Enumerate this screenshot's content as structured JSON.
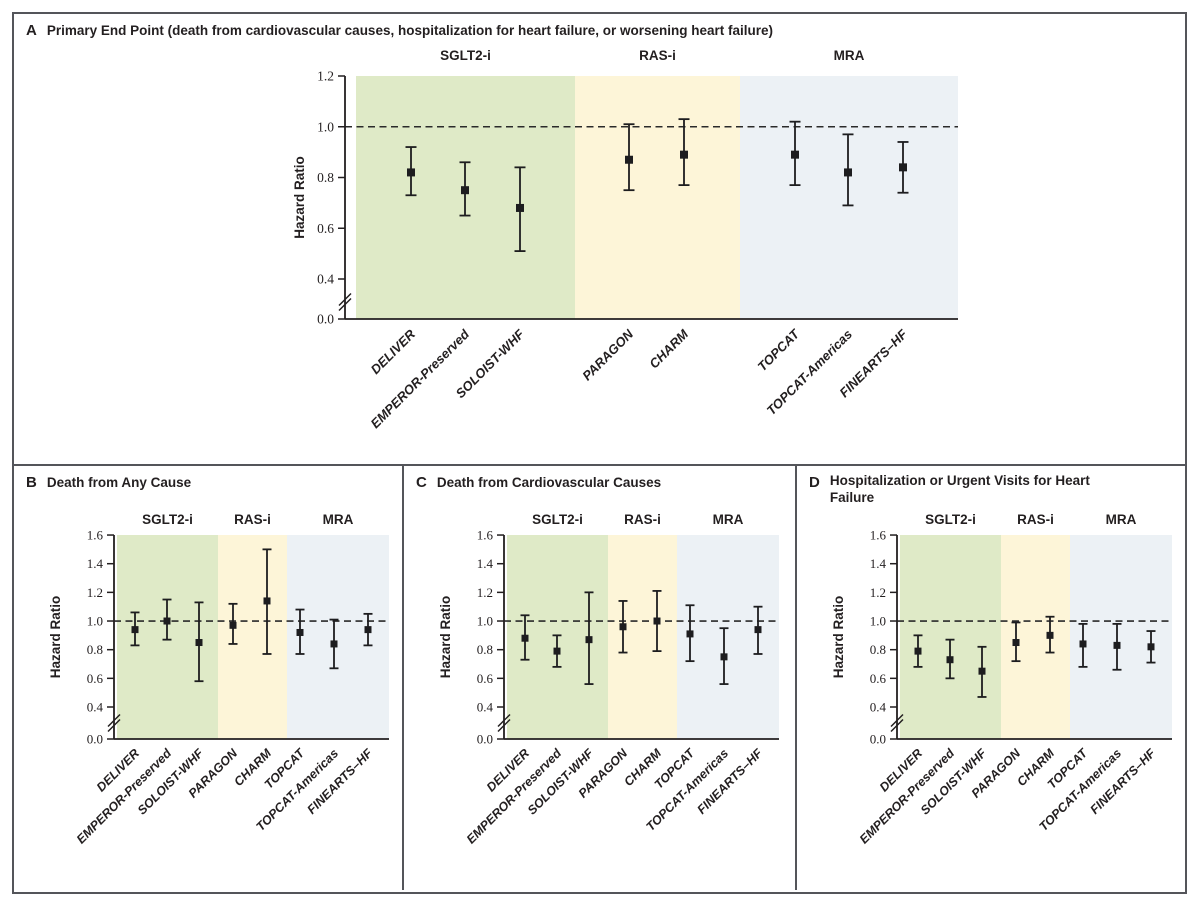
{
  "ylabel": "Hazard Ratio",
  "group_labels": [
    "SGLT2-i",
    "RAS-i",
    "MRA"
  ],
  "trials": [
    "DELIVER",
    "EMPEROR-Preserved",
    "SOLOIST-WHF",
    "PARAGON",
    "CHARM",
    "TOPCAT",
    "TOPCAT-Americas",
    "FINEARTS–HF"
  ],
  "colors": {
    "sglt2i_band": "#dfeac7",
    "rasi_band": "#fdf5d8",
    "mra_band": "#ecf1f5",
    "marker": "#1d1d1f",
    "axis": "#231f20",
    "reference_line": "#2a2a2a",
    "panel_border": "#54555a"
  },
  "chart_data": [
    {
      "type": "scatter",
      "panel": "A",
      "title": "Primary End Point (death from cardiovascular causes, hospitalization for heart failure, or worsening heart failure)",
      "ylabel": "Hazard Ratio",
      "ylim": [
        0.0,
        1.2
      ],
      "yticks": [
        0.0,
        0.4,
        0.6,
        0.8,
        1.0,
        1.2
      ],
      "axis_break_below": 0.4,
      "reference_line": 1.0,
      "grid": false,
      "groups": [
        {
          "name": "SGLT2-i",
          "trials": [
            "DELIVER",
            "EMPEROR-Preserved",
            "SOLOIST-WHF"
          ]
        },
        {
          "name": "RAS-i",
          "trials": [
            "PARAGON",
            "CHARM"
          ]
        },
        {
          "name": "MRA",
          "trials": [
            "TOPCAT",
            "TOPCAT-Americas",
            "FINEARTS–HF"
          ]
        }
      ],
      "series": [
        {
          "trial": "DELIVER",
          "group": "SGLT2-i",
          "hr": 0.82,
          "ci_lower": 0.73,
          "ci_upper": 0.92
        },
        {
          "trial": "EMPEROR-Preserved",
          "group": "SGLT2-i",
          "hr": 0.75,
          "ci_lower": 0.65,
          "ci_upper": 0.86
        },
        {
          "trial": "SOLOIST-WHF",
          "group": "SGLT2-i",
          "hr": 0.68,
          "ci_lower": 0.51,
          "ci_upper": 0.84
        },
        {
          "trial": "PARAGON",
          "group": "RAS-i",
          "hr": 0.87,
          "ci_lower": 0.75,
          "ci_upper": 1.01
        },
        {
          "trial": "CHARM",
          "group": "RAS-i",
          "hr": 0.89,
          "ci_lower": 0.77,
          "ci_upper": 1.03
        },
        {
          "trial": "TOPCAT",
          "group": "MRA",
          "hr": 0.89,
          "ci_lower": 0.77,
          "ci_upper": 1.02
        },
        {
          "trial": "TOPCAT-Americas",
          "group": "MRA",
          "hr": 0.82,
          "ci_lower": 0.69,
          "ci_upper": 0.97
        },
        {
          "trial": "FINEARTS–HF",
          "group": "MRA",
          "hr": 0.84,
          "ci_lower": 0.74,
          "ci_upper": 0.94
        }
      ]
    },
    {
      "type": "scatter",
      "panel": "B",
      "title": "Death from Any Cause",
      "ylabel": "Hazard Ratio",
      "ylim": [
        0.0,
        1.6
      ],
      "yticks": [
        0.0,
        0.4,
        0.6,
        0.8,
        1.0,
        1.2,
        1.4,
        1.6
      ],
      "axis_break_below": 0.4,
      "reference_line": 1.0,
      "grid": false,
      "groups": [
        {
          "name": "SGLT2-i",
          "trials": [
            "DELIVER",
            "EMPEROR-Preserved",
            "SOLOIST-WHF"
          ]
        },
        {
          "name": "RAS-i",
          "trials": [
            "PARAGON",
            "CHARM"
          ]
        },
        {
          "name": "MRA",
          "trials": [
            "TOPCAT",
            "TOPCAT-Americas",
            "FINEARTS–HF"
          ]
        }
      ],
      "series": [
        {
          "trial": "DELIVER",
          "group": "SGLT2-i",
          "hr": 0.94,
          "ci_lower": 0.83,
          "ci_upper": 1.06
        },
        {
          "trial": "EMPEROR-Preserved",
          "group": "SGLT2-i",
          "hr": 1.0,
          "ci_lower": 0.87,
          "ci_upper": 1.15
        },
        {
          "trial": "SOLOIST-WHF",
          "group": "SGLT2-i",
          "hr": 0.85,
          "ci_lower": 0.58,
          "ci_upper": 1.13
        },
        {
          "trial": "PARAGON",
          "group": "RAS-i",
          "hr": 0.97,
          "ci_lower": 0.84,
          "ci_upper": 1.12
        },
        {
          "trial": "CHARM",
          "group": "RAS-i",
          "hr": 1.14,
          "ci_lower": 0.77,
          "ci_upper": 1.5
        },
        {
          "trial": "TOPCAT",
          "group": "MRA",
          "hr": 0.92,
          "ci_lower": 0.77,
          "ci_upper": 1.08
        },
        {
          "trial": "TOPCAT-Americas",
          "group": "MRA",
          "hr": 0.84,
          "ci_lower": 0.67,
          "ci_upper": 1.01
        },
        {
          "trial": "FINEARTS–HF",
          "group": "MRA",
          "hr": 0.94,
          "ci_lower": 0.83,
          "ci_upper": 1.05
        }
      ]
    },
    {
      "type": "scatter",
      "panel": "C",
      "title": "Death from Cardiovascular Causes",
      "ylabel": "Hazard Ratio",
      "ylim": [
        0.0,
        1.6
      ],
      "yticks": [
        0.0,
        0.4,
        0.6,
        0.8,
        1.0,
        1.2,
        1.4,
        1.6
      ],
      "axis_break_below": 0.4,
      "reference_line": 1.0,
      "grid": false,
      "groups": [
        {
          "name": "SGLT2-i",
          "trials": [
            "DELIVER",
            "EMPEROR-Preserved",
            "SOLOIST-WHF"
          ]
        },
        {
          "name": "RAS-i",
          "trials": [
            "PARAGON",
            "CHARM"
          ]
        },
        {
          "name": "MRA",
          "trials": [
            "TOPCAT",
            "TOPCAT-Americas",
            "FINEARTS–HF"
          ]
        }
      ],
      "series": [
        {
          "trial": "DELIVER",
          "group": "SGLT2-i",
          "hr": 0.88,
          "ci_lower": 0.73,
          "ci_upper": 1.04
        },
        {
          "trial": "EMPEROR-Preserved",
          "group": "SGLT2-i",
          "hr": 0.79,
          "ci_lower": 0.68,
          "ci_upper": 0.9
        },
        {
          "trial": "SOLOIST-WHF",
          "group": "SGLT2-i",
          "hr": 0.87,
          "ci_lower": 0.56,
          "ci_upper": 1.2
        },
        {
          "trial": "PARAGON",
          "group": "RAS-i",
          "hr": 0.96,
          "ci_lower": 0.78,
          "ci_upper": 1.14
        },
        {
          "trial": "CHARM",
          "group": "RAS-i",
          "hr": 1.0,
          "ci_lower": 0.79,
          "ci_upper": 1.21
        },
        {
          "trial": "TOPCAT",
          "group": "MRA",
          "hr": 0.91,
          "ci_lower": 0.72,
          "ci_upper": 1.11
        },
        {
          "trial": "TOPCAT-Americas",
          "group": "MRA",
          "hr": 0.75,
          "ci_lower": 0.56,
          "ci_upper": 0.95
        },
        {
          "trial": "FINEARTS–HF",
          "group": "MRA",
          "hr": 0.94,
          "ci_lower": 0.77,
          "ci_upper": 1.1
        }
      ]
    },
    {
      "type": "scatter",
      "panel": "D",
      "title": "Hospitalization or Urgent Visits for Heart Failure",
      "ylabel": "Hazard Ratio",
      "ylim": [
        0.0,
        1.6
      ],
      "yticks": [
        0.0,
        0.4,
        0.6,
        0.8,
        1.0,
        1.2,
        1.4,
        1.6
      ],
      "axis_break_below": 0.4,
      "reference_line": 1.0,
      "grid": false,
      "groups": [
        {
          "name": "SGLT2-i",
          "trials": [
            "DELIVER",
            "EMPEROR-Preserved",
            "SOLOIST-WHF"
          ]
        },
        {
          "name": "RAS-i",
          "trials": [
            "PARAGON",
            "CHARM"
          ]
        },
        {
          "name": "MRA",
          "trials": [
            "TOPCAT",
            "TOPCAT-Americas",
            "FINEARTS–HF"
          ]
        }
      ],
      "series": [
        {
          "trial": "DELIVER",
          "group": "SGLT2-i",
          "hr": 0.79,
          "ci_lower": 0.68,
          "ci_upper": 0.9
        },
        {
          "trial": "EMPEROR-Preserved",
          "group": "SGLT2-i",
          "hr": 0.73,
          "ci_lower": 0.6,
          "ci_upper": 0.87
        },
        {
          "trial": "SOLOIST-WHF",
          "group": "SGLT2-i",
          "hr": 0.65,
          "ci_lower": 0.47,
          "ci_upper": 0.82
        },
        {
          "trial": "PARAGON",
          "group": "RAS-i",
          "hr": 0.85,
          "ci_lower": 0.72,
          "ci_upper": 0.99
        },
        {
          "trial": "CHARM",
          "group": "RAS-i",
          "hr": 0.9,
          "ci_lower": 0.78,
          "ci_upper": 1.03
        },
        {
          "trial": "TOPCAT",
          "group": "MRA",
          "hr": 0.84,
          "ci_lower": 0.68,
          "ci_upper": 0.98
        },
        {
          "trial": "TOPCAT-Americas",
          "group": "MRA",
          "hr": 0.83,
          "ci_lower": 0.66,
          "ci_upper": 0.98
        },
        {
          "trial": "FINEARTS–HF",
          "group": "MRA",
          "hr": 0.82,
          "ci_lower": 0.71,
          "ci_upper": 0.93
        }
      ]
    }
  ]
}
